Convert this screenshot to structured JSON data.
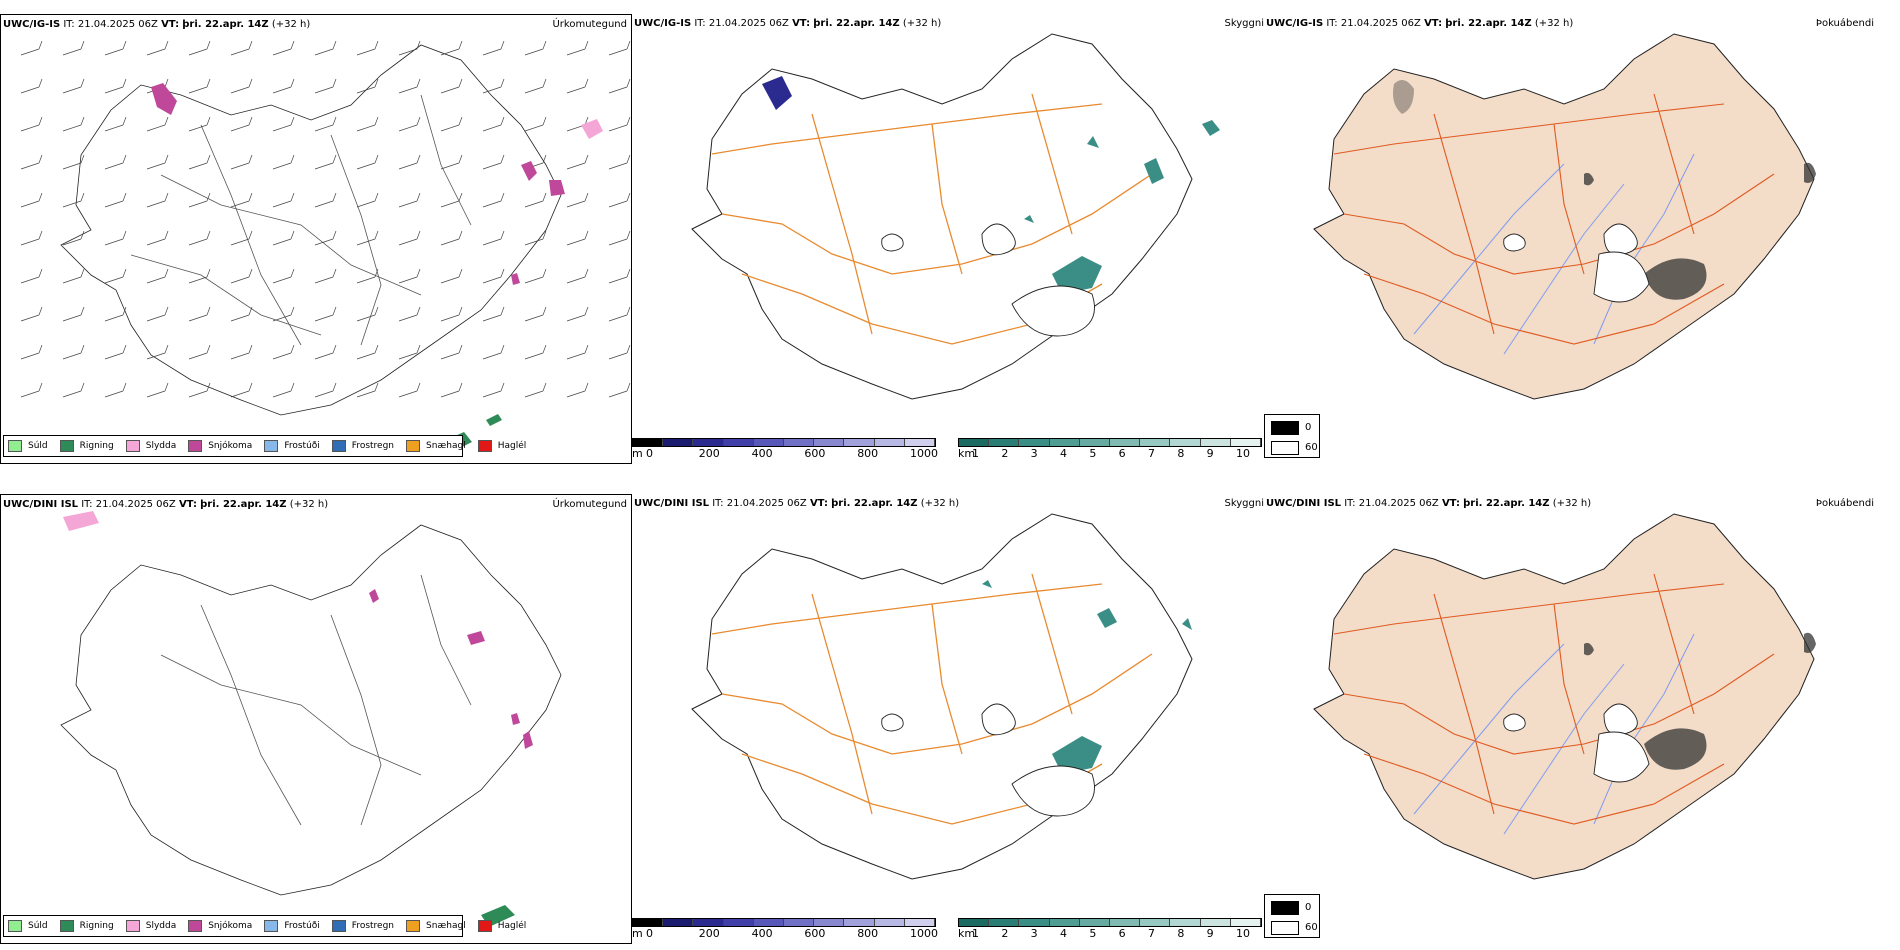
{
  "rows": [
    {
      "model": "UWC/IG-IS",
      "it_label": "IT:",
      "it_value": "21.04.2025 06Z",
      "vt_label": "VT:",
      "vt_value": "þri. 22.apr. 14Z",
      "lead": "(+32 h)"
    },
    {
      "model": "UWC/DINI ISL",
      "it_label": "IT:",
      "it_value": "21.04.2025 06Z",
      "vt_label": "VT:",
      "vt_value": "þri. 22.apr. 14Z",
      "lead": "(+32 h)"
    }
  ],
  "panel_titles": {
    "precip_type": "Úrkomutegund",
    "visibility": "Skyggni",
    "fog": "Þokuábendi"
  },
  "precip_legend": [
    {
      "label": "Súld",
      "color": "#90ee90"
    },
    {
      "label": "Rigning",
      "color": "#2e8b57"
    },
    {
      "label": "Slydda",
      "color": "#f4a6d7"
    },
    {
      "label": "Snjókoma",
      "color": "#c0489a"
    },
    {
      "label": "Frostúði",
      "color": "#87b8e8"
    },
    {
      "label": "Frostregn",
      "color": "#2f6db5"
    },
    {
      "label": "Snæhagl",
      "color": "#f0a020"
    },
    {
      "label": "Haglél",
      "color": "#e01818"
    }
  ],
  "ceiling_scale": {
    "unit": "m",
    "ticks": [
      "0",
      "200",
      "400",
      "600",
      "800",
      "1000"
    ],
    "colors": [
      "#000000",
      "#1a1a6e",
      "#2b2b8f",
      "#4040a8",
      "#5858b8",
      "#7070c4",
      "#8888cf",
      "#a0a0da",
      "#b8b8e4",
      "#d0d0ee"
    ]
  },
  "visibility_scale": {
    "unit": "km",
    "ticks": [
      "1",
      "2",
      "3",
      "4",
      "5",
      "6",
      "7",
      "8",
      "9",
      "10"
    ],
    "colors": [
      "#1b6b63",
      "#2a7d74",
      "#3b8e85",
      "#4f9c93",
      "#66aaa2",
      "#7fb9b2",
      "#98c8c2",
      "#b2d6d1",
      "#cbe4e0",
      "#e4f2f0"
    ]
  },
  "fog_scale": {
    "entries": [
      {
        "label": "0",
        "color": "#000000"
      },
      {
        "label": "60",
        "color": "#ffffff"
      }
    ]
  },
  "colors": {
    "land_fill": "#f3dcc8",
    "roads": "#e05a20",
    "rivers": "#7f9cf0",
    "outline": "#222222",
    "road_orange": "#e88a30"
  }
}
